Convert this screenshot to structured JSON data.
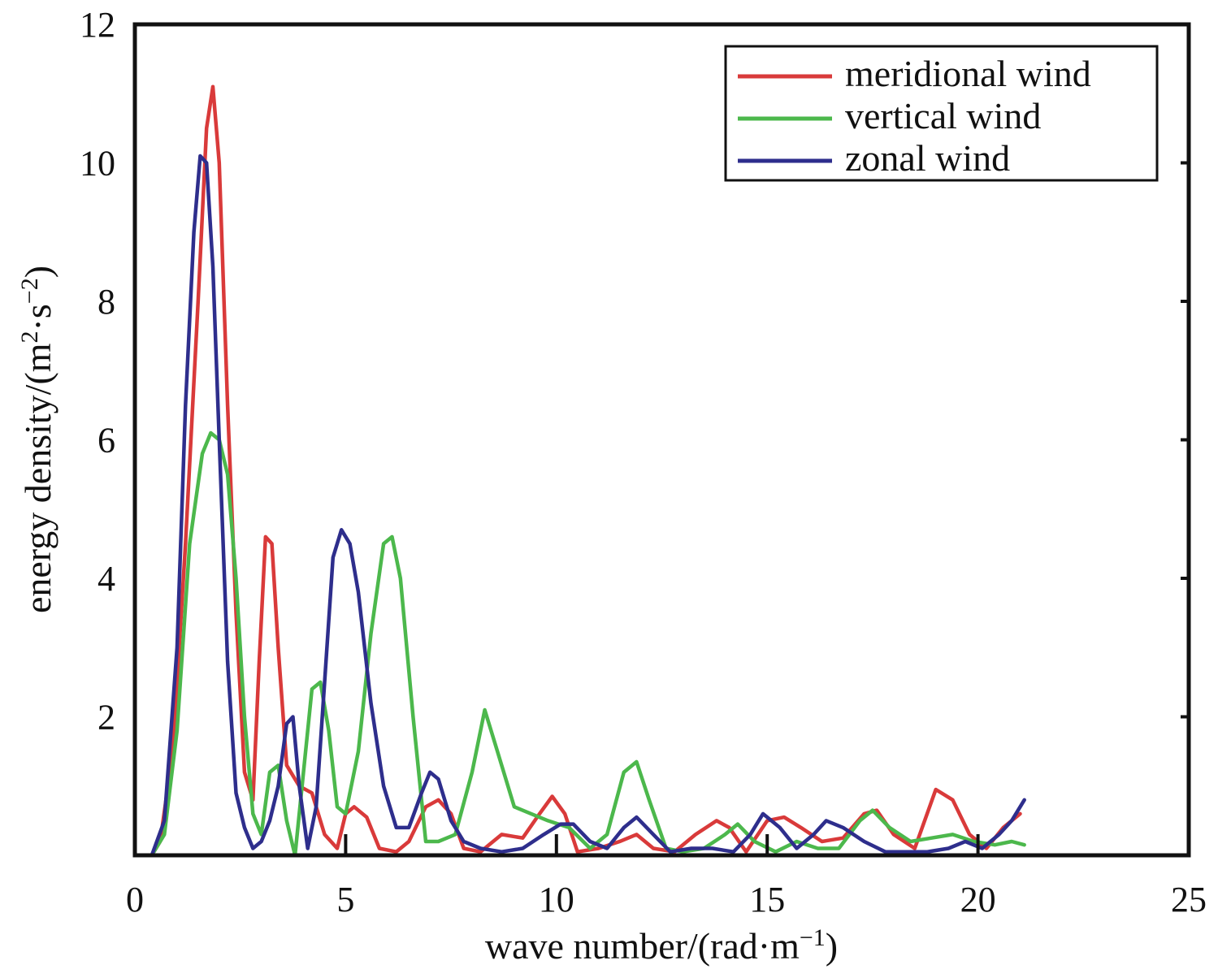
{
  "chart_data": {
    "type": "line",
    "xlabel_parts": {
      "main": "wave number/(rad·m",
      "sup": "−1",
      "close": ")"
    },
    "ylabel_parts": {
      "main": "energy density/(m",
      "sup1": "2",
      "mid": "·s",
      "sup2": "−2",
      "close": ")"
    },
    "xlim": [
      0,
      25
    ],
    "ylim": [
      0,
      12
    ],
    "xticks": [
      0,
      5,
      10,
      15,
      20,
      25
    ],
    "yticks": [
      2,
      4,
      6,
      8,
      10,
      12
    ],
    "grid": false,
    "legend_position": "top-right",
    "series": [
      {
        "name": "meridional wind",
        "color": "#d93a3a",
        "x": [
          0.4,
          0.6,
          0.9,
          1.2,
          1.5,
          1.7,
          1.85,
          2.0,
          2.2,
          2.4,
          2.6,
          2.8,
          2.95,
          3.1,
          3.25,
          3.4,
          3.6,
          3.9,
          4.2,
          4.5,
          4.8,
          5.0,
          5.2,
          5.5,
          5.8,
          6.2,
          6.5,
          6.9,
          7.2,
          7.5,
          7.8,
          8.2,
          8.7,
          9.2,
          9.6,
          9.9,
          10.2,
          10.5,
          11.0,
          11.5,
          11.9,
          12.3,
          12.8,
          13.3,
          13.8,
          14.1,
          14.5,
          15.0,
          15.4,
          15.8,
          16.3,
          16.8,
          17.3,
          17.6,
          18.0,
          18.5,
          19.0,
          19.4,
          19.8,
          20.2,
          20.6,
          21.0
        ],
        "y": [
          0.0,
          0.2,
          1.5,
          4.5,
          8.0,
          10.5,
          11.1,
          10.0,
          6.5,
          3.5,
          1.2,
          0.8,
          2.8,
          4.6,
          4.5,
          3.0,
          1.3,
          1.0,
          0.9,
          0.3,
          0.1,
          0.6,
          0.7,
          0.55,
          0.1,
          0.05,
          0.2,
          0.7,
          0.8,
          0.6,
          0.1,
          0.05,
          0.3,
          0.25,
          0.6,
          0.85,
          0.6,
          0.05,
          0.1,
          0.2,
          0.3,
          0.1,
          0.05,
          0.3,
          0.5,
          0.4,
          0.05,
          0.5,
          0.55,
          0.4,
          0.2,
          0.25,
          0.6,
          0.65,
          0.3,
          0.1,
          0.95,
          0.8,
          0.3,
          0.1,
          0.4,
          0.6
        ]
      },
      {
        "name": "vertical wind",
        "color": "#4cb84c",
        "x": [
          0.4,
          0.7,
          1.0,
          1.3,
          1.6,
          1.8,
          2.0,
          2.2,
          2.4,
          2.6,
          2.8,
          3.0,
          3.2,
          3.4,
          3.6,
          3.8,
          4.0,
          4.2,
          4.4,
          4.6,
          4.8,
          5.0,
          5.3,
          5.6,
          5.9,
          6.1,
          6.3,
          6.6,
          6.9,
          7.2,
          7.6,
          8.0,
          8.3,
          8.6,
          9.0,
          9.4,
          9.8,
          10.3,
          10.8,
          11.2,
          11.6,
          11.9,
          12.2,
          12.6,
          13.0,
          13.5,
          14.0,
          14.3,
          14.7,
          15.2,
          15.7,
          16.2,
          16.7,
          17.2,
          17.5,
          17.9,
          18.4,
          18.9,
          19.4,
          19.9,
          20.4,
          20.8,
          21.1
        ],
        "y": [
          0.0,
          0.3,
          1.8,
          4.5,
          5.8,
          6.1,
          6.0,
          5.5,
          4.0,
          2.0,
          0.6,
          0.3,
          1.2,
          1.3,
          0.5,
          0.0,
          1.2,
          2.4,
          2.5,
          1.8,
          0.7,
          0.6,
          1.5,
          3.2,
          4.5,
          4.6,
          4.0,
          2.0,
          0.2,
          0.2,
          0.3,
          1.2,
          2.1,
          1.5,
          0.7,
          0.6,
          0.5,
          0.4,
          0.1,
          0.3,
          1.2,
          1.35,
          0.8,
          0.1,
          0.05,
          0.1,
          0.3,
          0.45,
          0.2,
          0.05,
          0.2,
          0.1,
          0.1,
          0.5,
          0.65,
          0.4,
          0.2,
          0.25,
          0.3,
          0.2,
          0.15,
          0.2,
          0.15
        ]
      },
      {
        "name": "zonal wind",
        "color": "#2e2e8c",
        "x": [
          0.4,
          0.7,
          1.0,
          1.2,
          1.4,
          1.55,
          1.7,
          1.85,
          2.0,
          2.2,
          2.4,
          2.6,
          2.8,
          3.0,
          3.2,
          3.4,
          3.6,
          3.75,
          3.9,
          4.1,
          4.3,
          4.5,
          4.7,
          4.9,
          5.1,
          5.3,
          5.6,
          5.9,
          6.2,
          6.5,
          6.8,
          7.0,
          7.2,
          7.5,
          7.8,
          8.2,
          8.7,
          9.2,
          9.7,
          10.1,
          10.4,
          10.8,
          11.2,
          11.6,
          11.9,
          12.3,
          12.7,
          13.2,
          13.7,
          14.2,
          14.6,
          14.9,
          15.3,
          15.7,
          16.1,
          16.4,
          16.8,
          17.3,
          17.8,
          18.3,
          18.8,
          19.3,
          19.7,
          20.1,
          20.5,
          20.8,
          21.1
        ],
        "y": [
          0.0,
          0.5,
          3.0,
          6.5,
          9.0,
          10.1,
          10.0,
          8.5,
          6.0,
          2.8,
          0.9,
          0.4,
          0.1,
          0.2,
          0.5,
          1.0,
          1.9,
          2.0,
          1.0,
          0.1,
          0.7,
          2.5,
          4.3,
          4.7,
          4.5,
          3.8,
          2.2,
          1.0,
          0.4,
          0.4,
          0.9,
          1.2,
          1.1,
          0.5,
          0.2,
          0.1,
          0.05,
          0.1,
          0.3,
          0.45,
          0.45,
          0.2,
          0.1,
          0.4,
          0.55,
          0.3,
          0.05,
          0.1,
          0.1,
          0.05,
          0.3,
          0.6,
          0.4,
          0.1,
          0.3,
          0.5,
          0.4,
          0.2,
          0.05,
          0.05,
          0.05,
          0.1,
          0.2,
          0.1,
          0.3,
          0.5,
          0.8
        ]
      }
    ]
  }
}
